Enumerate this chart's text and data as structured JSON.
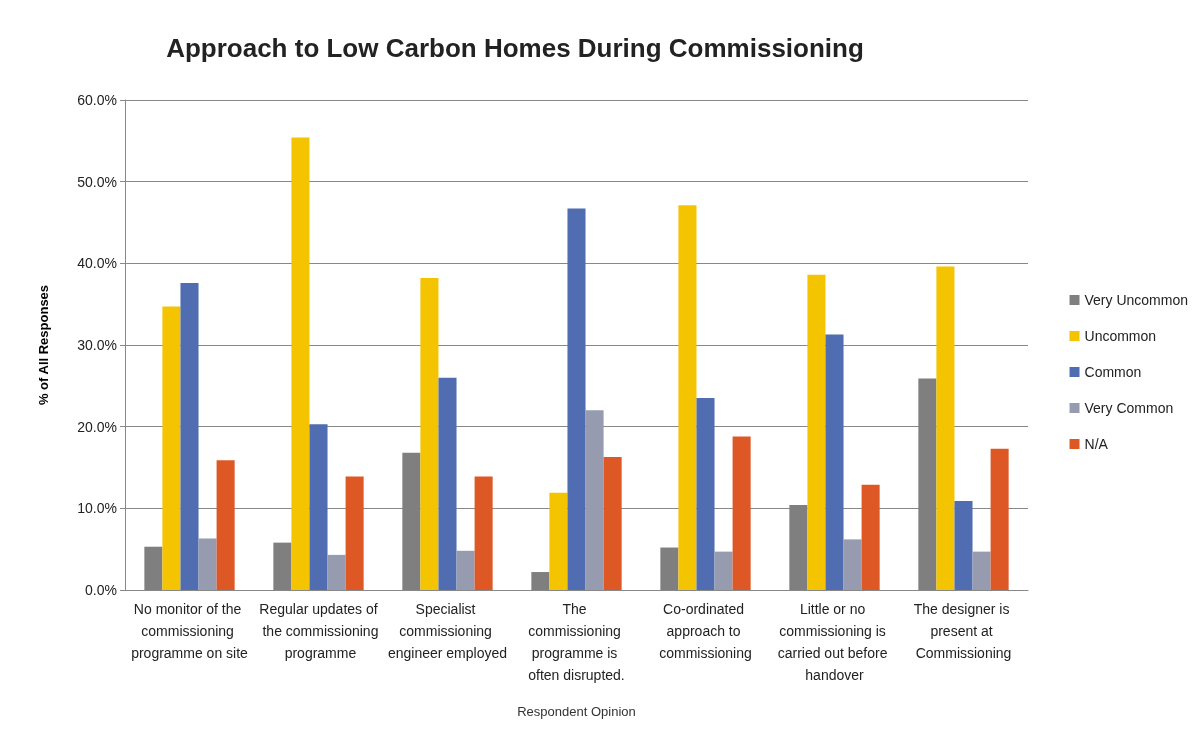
{
  "chart_data": {
    "type": "bar",
    "title": "Approach to Low Carbon Homes During Commissioning",
    "xlabel": "Respondent Opinion",
    "ylabel": "% of All Responses",
    "categories": [
      "No monitor of the commissioning programme on site",
      "Regular updates of the commissioning programme",
      "Specialist commissioning engineer employed",
      "The commissioning programme is often disrupted.",
      "Co-ordinated approach to commissioning",
      "Little or no commissioning is carried out before handover",
      "The designer is present at Commissioning"
    ],
    "series": [
      {
        "name": "Very Uncommon",
        "color": "#7f7f7f",
        "values": [
          5.3,
          5.8,
          16.8,
          2.2,
          5.2,
          10.4,
          25.9
        ]
      },
      {
        "name": "Uncommon",
        "color": "#f5c400",
        "values": [
          34.7,
          55.4,
          38.2,
          11.9,
          47.1,
          38.6,
          39.6
        ]
      },
      {
        "name": "Common",
        "color": "#4f6db0",
        "values": [
          37.6,
          20.3,
          26.0,
          46.7,
          23.5,
          31.3,
          10.9
        ]
      },
      {
        "name": "Very Common",
        "color": "#979bb0",
        "values": [
          6.3,
          4.3,
          4.8,
          22.0,
          4.7,
          6.2,
          4.7
        ]
      },
      {
        "name": "N/A",
        "color": "#de5826",
        "values": [
          15.9,
          13.9,
          13.9,
          16.3,
          18.8,
          12.9,
          17.3
        ]
      }
    ],
    "ylim": [
      0,
      60
    ],
    "yticks": [
      {
        "value": 0,
        "label": "0.0%"
      },
      {
        "value": 10,
        "label": "10.0%"
      },
      {
        "value": 20,
        "label": "20.0%"
      },
      {
        "value": 30,
        "label": "30.0%"
      },
      {
        "value": 40,
        "label": "40.0%"
      },
      {
        "value": 50,
        "label": "50.0%"
      },
      {
        "value": 60,
        "label": "60.0%"
      }
    ],
    "grid": "y",
    "legend": "right"
  }
}
